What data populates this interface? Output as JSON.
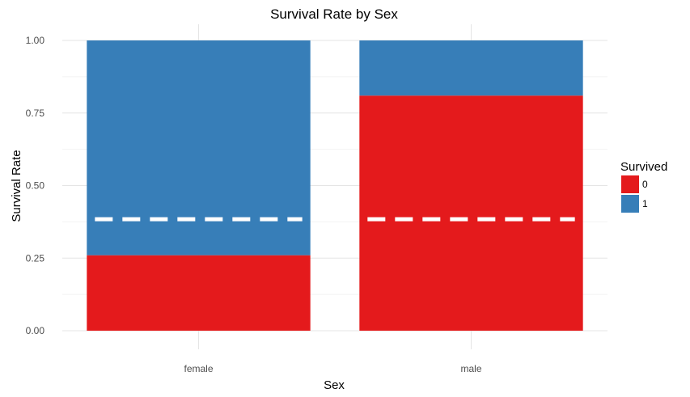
{
  "chart_data": {
    "type": "bar",
    "stacked": true,
    "position": "fill",
    "title": "Survival Rate by Sex",
    "xlabel": "Sex",
    "ylabel": "Survival Rate",
    "categories": [
      "female",
      "male"
    ],
    "series": [
      {
        "name": "0",
        "values": [
          0.26,
          0.81
        ],
        "color": "#E41A1C"
      },
      {
        "name": "1",
        "values": [
          0.74,
          0.19
        ],
        "color": "#377EB8"
      }
    ],
    "ylim": [
      0,
      1
    ],
    "yticks": [
      "0.00",
      "0.25",
      "0.50",
      "0.75",
      "1.00"
    ],
    "reference_line": {
      "value": 0.384,
      "style": "dashed",
      "color": "#FFFFFF"
    },
    "legend": {
      "title": "Survived",
      "placement": "right"
    },
    "grid": true
  }
}
